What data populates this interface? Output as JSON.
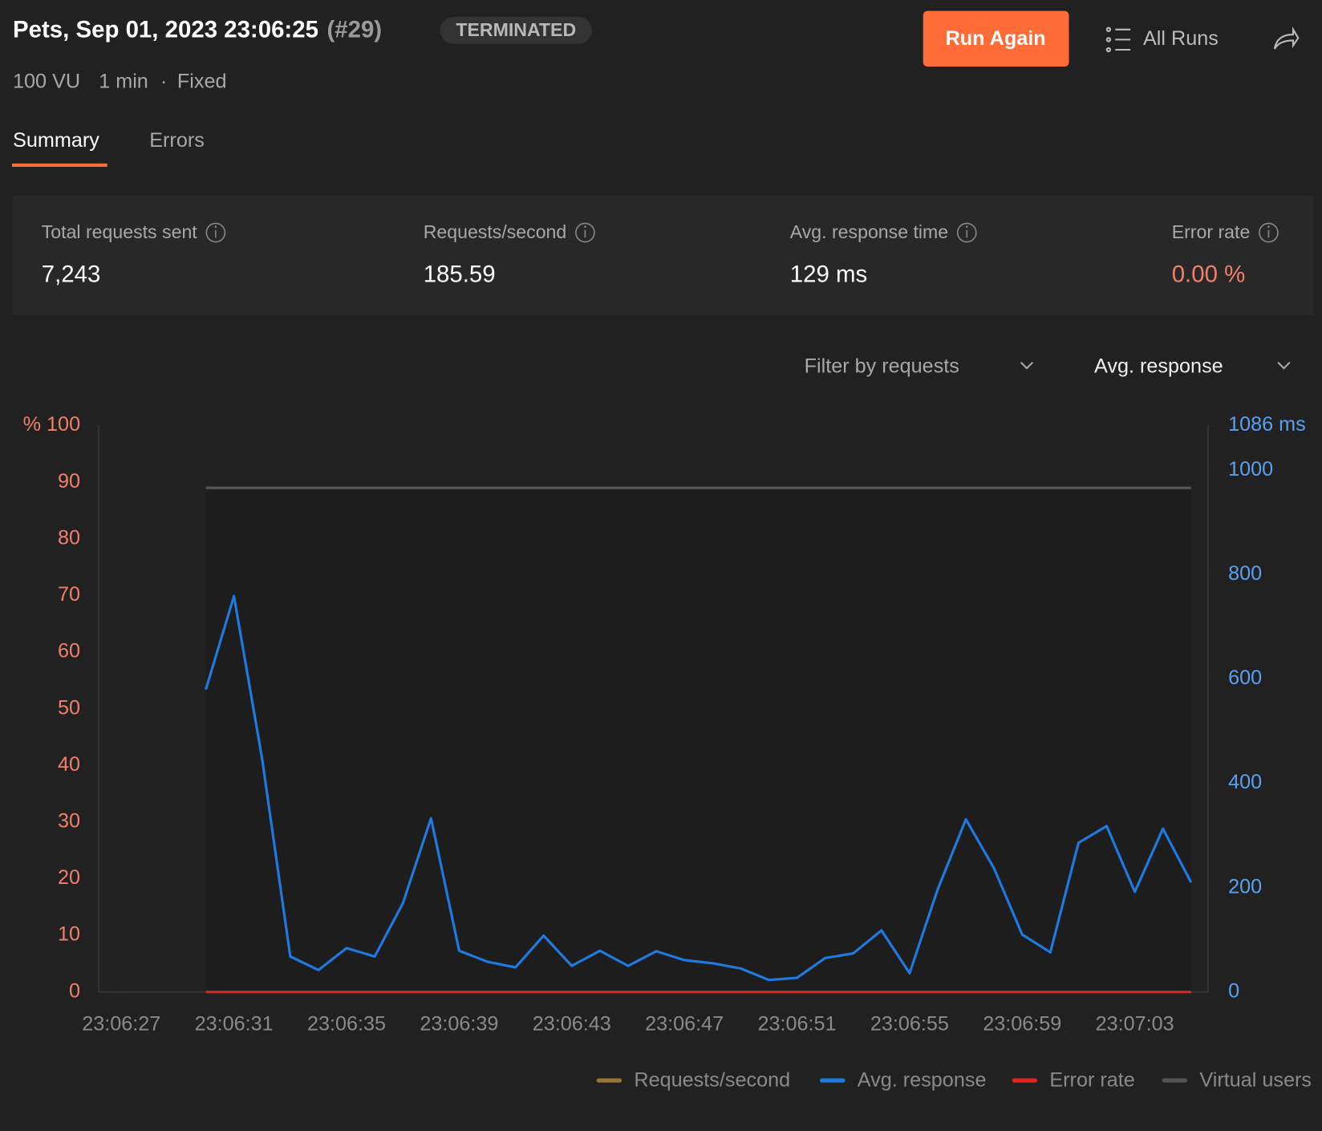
{
  "header": {
    "title": "Pets, Sep 01, 2023 23:06:25",
    "run": "(#29)",
    "status": "TERMINATED",
    "run_again": "Run Again",
    "all_runs": "All Runs",
    "meta": {
      "vu": "100 VU",
      "duration": "1 min",
      "separator": "·",
      "mode": "Fixed"
    }
  },
  "tabs": [
    "Summary",
    "Errors"
  ],
  "stats": [
    {
      "label": "Total requests sent",
      "value": "7,243"
    },
    {
      "label": "Requests/second",
      "value": "185.59"
    },
    {
      "label": "Avg. response time",
      "value": "129 ms"
    },
    {
      "label": "Error rate",
      "value": "0.00 %"
    }
  ],
  "filters": [
    "Filter by requests",
    "Avg. response"
  ],
  "chart_data": {
    "type": "line",
    "x": [
      30,
      31,
      32,
      33,
      34,
      35,
      36,
      37,
      38,
      39,
      40,
      41,
      42,
      43,
      44,
      45,
      46,
      47,
      48,
      49,
      50,
      51,
      52,
      53,
      54,
      55,
      56,
      57,
      58,
      59,
      60,
      61,
      62,
      63,
      64,
      65
    ],
    "xlim": [
      26.2,
      65.6
    ],
    "xticks": [
      {
        "value": 27,
        "label": "23:06:27"
      },
      {
        "value": 31,
        "label": "23:06:31"
      },
      {
        "value": 35,
        "label": "23:06:35"
      },
      {
        "value": 39,
        "label": "23:06:39"
      },
      {
        "value": 43,
        "label": "23:06:43"
      },
      {
        "value": 47,
        "label": "23:06:47"
      },
      {
        "value": 51,
        "label": "23:06:51"
      },
      {
        "value": 55,
        "label": "23:06:55"
      },
      {
        "value": 59,
        "label": "23:06:59"
      },
      {
        "value": 63,
        "label": "23:07:03"
      }
    ],
    "ylim": [
      0,
      100
    ],
    "yticks": [
      0,
      10,
      20,
      30,
      40,
      50,
      60,
      70,
      80,
      90,
      {
        "value": 100,
        "label": "% 100"
      }
    ],
    "y2lim": [
      0,
      1086
    ],
    "y2ticks": [
      0,
      200,
      400,
      600,
      800,
      1000,
      {
        "value": 1086,
        "label": "1086 ms"
      }
    ],
    "series": [
      {
        "name": "Requests/second",
        "color": "#9a7438",
        "axis": "y2",
        "values": [
          null,
          null,
          null,
          null,
          null,
          null,
          null,
          null,
          null,
          null,
          null,
          null,
          null,
          null,
          null,
          null,
          null,
          null,
          null,
          null,
          null,
          null,
          null,
          null,
          null,
          null,
          null,
          null,
          null,
          null,
          null,
          null,
          null,
          null,
          null,
          null
        ]
      },
      {
        "name": "Avg. response",
        "color": "#1f7ae0",
        "axis": "y2",
        "values": [
          580,
          759,
          447,
          68,
          42,
          84,
          68,
          170,
          333,
          79,
          58,
          47,
          108,
          50,
          79,
          50,
          78,
          61,
          55,
          45,
          23,
          27,
          65,
          74,
          118,
          36,
          197,
          331,
          237,
          110,
          76,
          286,
          318,
          192,
          313,
          210
        ]
      },
      {
        "name": "Error rate",
        "color": "#e0251f",
        "values": [
          0,
          0,
          0,
          0,
          0,
          0,
          0,
          0,
          0,
          0,
          0,
          0,
          0,
          0,
          0,
          0,
          0,
          0,
          0,
          0,
          0,
          0,
          0,
          0,
          0,
          0,
          0,
          0,
          0,
          0,
          0,
          0,
          0,
          0,
          0,
          0
        ]
      },
      {
        "name": "Virtual users",
        "color": "#555555",
        "values": [
          89,
          89,
          89,
          89,
          89,
          89,
          89,
          89,
          89,
          89,
          89,
          89,
          89,
          89,
          89,
          89,
          89,
          89,
          89,
          89,
          89,
          89,
          89,
          89,
          89,
          89,
          89,
          89,
          89,
          89,
          89,
          89,
          89,
          89,
          89,
          89
        ]
      }
    ]
  }
}
